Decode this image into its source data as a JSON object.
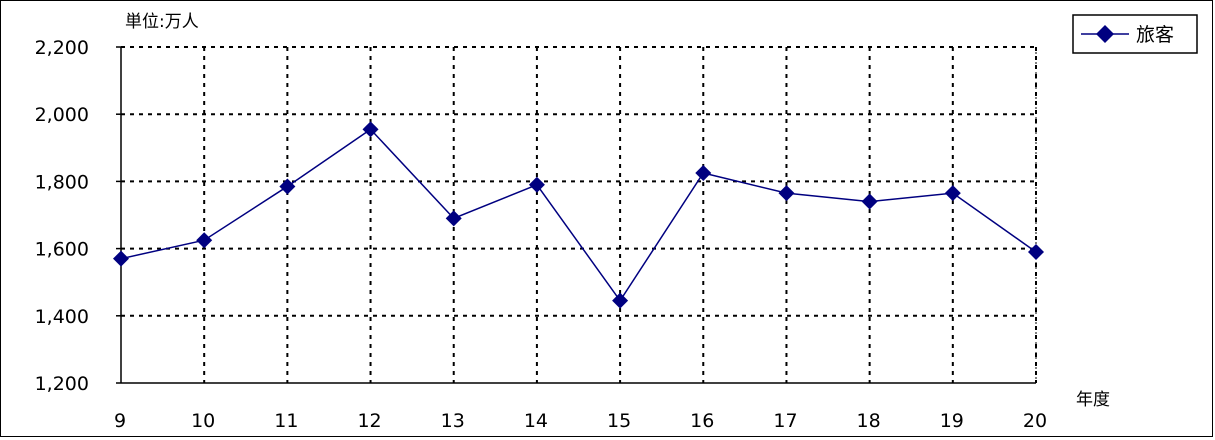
{
  "chart_data": {
    "type": "line",
    "title": "",
    "unit_label": "単位:万人",
    "xlabel": "年度",
    "ylabel": "",
    "categories": [
      "9",
      "10",
      "11",
      "12",
      "13",
      "14",
      "15",
      "16",
      "17",
      "18",
      "19",
      "20"
    ],
    "series": [
      {
        "name": "旅客",
        "values": [
          1570,
          1625,
          1785,
          1955,
          1690,
          1790,
          1445,
          1825,
          1765,
          1740,
          1765,
          1590
        ],
        "color": "#000080",
        "marker": "diamond"
      }
    ],
    "ylim": [
      1200,
      2200
    ],
    "yticks": [
      1200,
      1400,
      1600,
      1800,
      2000,
      2200
    ],
    "ytick_labels": [
      "1,200",
      "1,400",
      "1,600",
      "1,800",
      "2,000",
      "2,200"
    ],
    "grid": true,
    "grid_style": "dotted",
    "legend_position": "top-right"
  }
}
